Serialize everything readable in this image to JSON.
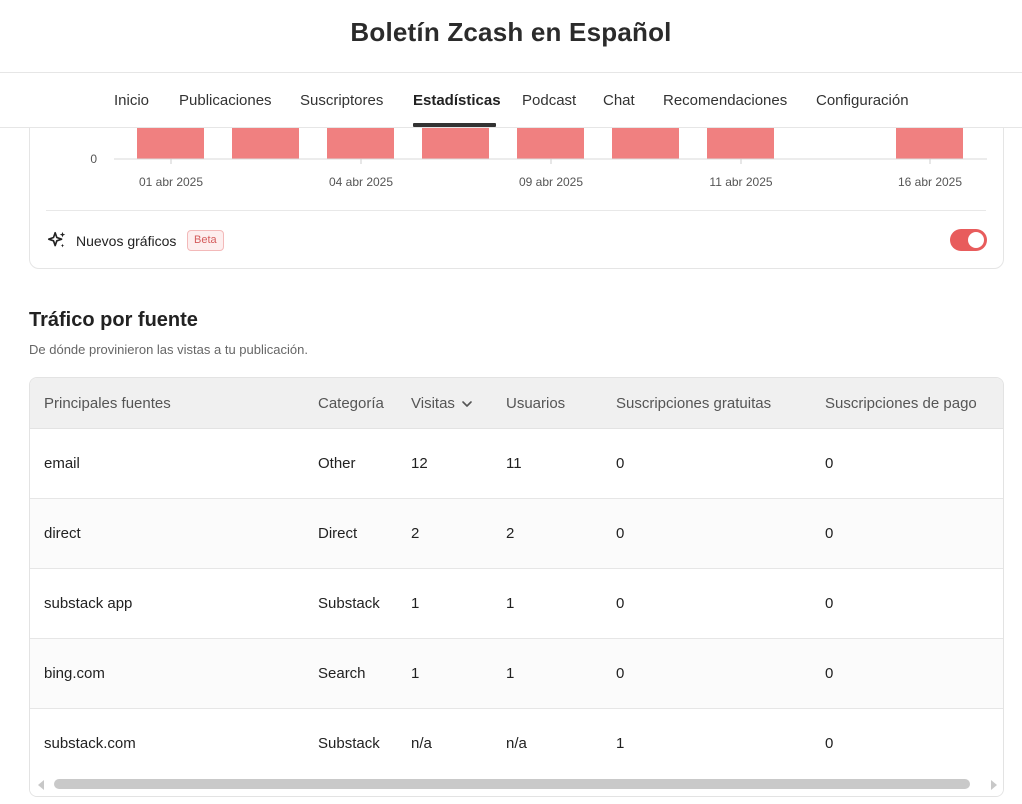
{
  "header": {
    "title": "Boletín Zcash en Español"
  },
  "tabs": [
    {
      "label": "Inicio",
      "active": false
    },
    {
      "label": "Publicaciones",
      "active": false
    },
    {
      "label": "Suscriptores",
      "active": false
    },
    {
      "label": "Estadísticas",
      "active": true
    },
    {
      "label": "Podcast",
      "active": false
    },
    {
      "label": "Chat",
      "active": false
    },
    {
      "label": "Recomendaciones",
      "active": false
    },
    {
      "label": "Configuración",
      "active": false
    }
  ],
  "chart_data": {
    "type": "bar",
    "y_tick_visible": "0",
    "x_ticks": [
      "01 abr 2025",
      "04 abr 2025",
      "09 abr 2025",
      "11 abr 2025",
      "16 abr 2025"
    ],
    "bar_color": "#f08080",
    "note": ""
  },
  "chart_footer": {
    "new_charts_label": "Nuevos gráficos",
    "beta_label": "Beta",
    "toggle_on": true,
    "accent": "#e85c5c"
  },
  "traffic": {
    "title": "Tráfico por fuente",
    "subtitle": "De dónde provinieron las vistas a tu publicación.",
    "columns": [
      "Principales fuentes",
      "Categoría",
      "Visitas",
      "Usuarios",
      "Suscripciones gratuitas",
      "Suscripciones de pago"
    ],
    "rows": [
      [
        "email",
        "Other",
        "12",
        "11",
        "0",
        "0"
      ],
      [
        "direct",
        "Direct",
        "2",
        "2",
        "0",
        "0"
      ],
      [
        "substack app",
        "Substack",
        "1",
        "1",
        "0",
        "0"
      ],
      [
        "bing.com",
        "Search",
        "1",
        "1",
        "0",
        "0"
      ],
      [
        "substack.com",
        "Substack",
        "n/a",
        "n/a",
        "1",
        "0"
      ]
    ]
  }
}
